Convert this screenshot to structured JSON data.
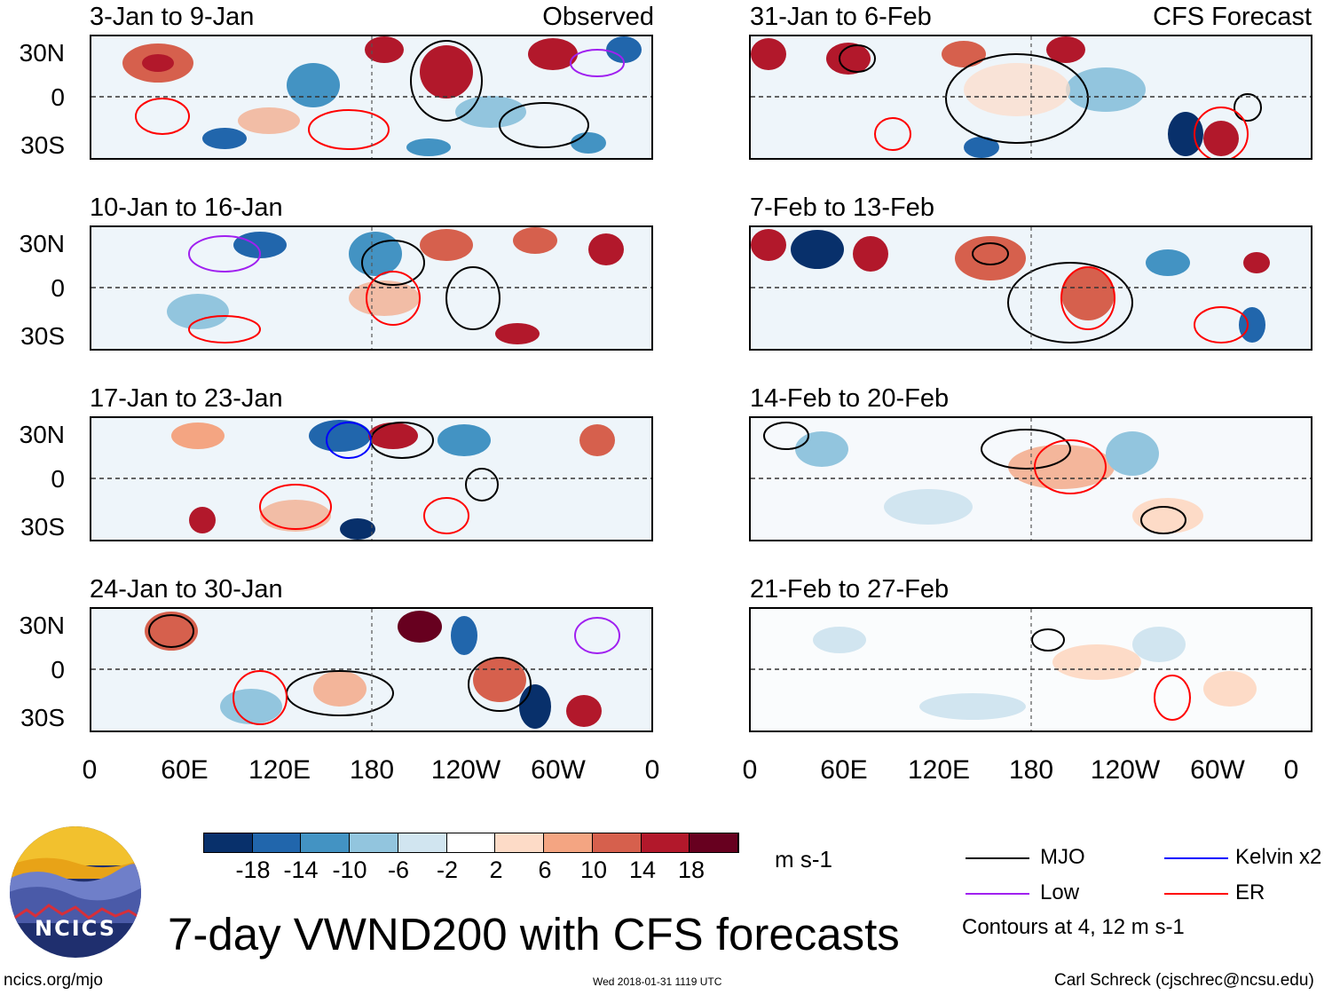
{
  "title": "7-day VWND200 with CFS forecasts",
  "units": "m s-1",
  "logo": {
    "name": "NCICS"
  },
  "left_label": "ncics.org/mjo",
  "timestamp": "Wed 2018-01-31 1119 UTC",
  "credit": "Carl Schreck (cjschrec@ncsu.edu)",
  "observed_tag": "Observed",
  "forecast_tag": "CFS Forecast",
  "lat_labels": [
    "30N",
    "0",
    "30S"
  ],
  "lon_labels": [
    "0",
    "60E",
    "120E",
    "180",
    "120W",
    "60W",
    "0"
  ],
  "observed_panels": [
    "3-Jan to 9-Jan",
    "10-Jan to 16-Jan",
    "17-Jan to 23-Jan",
    "24-Jan to 30-Jan"
  ],
  "forecast_panels": [
    "31-Jan to 6-Feb",
    "7-Feb to 13-Feb",
    "14-Feb to 20-Feb",
    "21-Feb to 27-Feb"
  ],
  "colorbar": {
    "labels": [
      "-18",
      "-14",
      "-10",
      "-6",
      "-2",
      "2",
      "6",
      "10",
      "14",
      "18"
    ],
    "colors": [
      "#08306b",
      "#2166ac",
      "#4393c3",
      "#92c5de",
      "#d1e5f0",
      "#ffffff",
      "#fddbc7",
      "#f4a582",
      "#d6604d",
      "#b2182b",
      "#67001f"
    ]
  },
  "legend": {
    "items": [
      {
        "label": "MJO",
        "color": "#000000"
      },
      {
        "label": "Kelvin x2",
        "color": "#0000ff"
      },
      {
        "label": "Low",
        "color": "#a020f0"
      },
      {
        "label": "ER",
        "color": "#ff0000"
      }
    ],
    "note": "Contours at 4, 12 m s-1"
  }
}
